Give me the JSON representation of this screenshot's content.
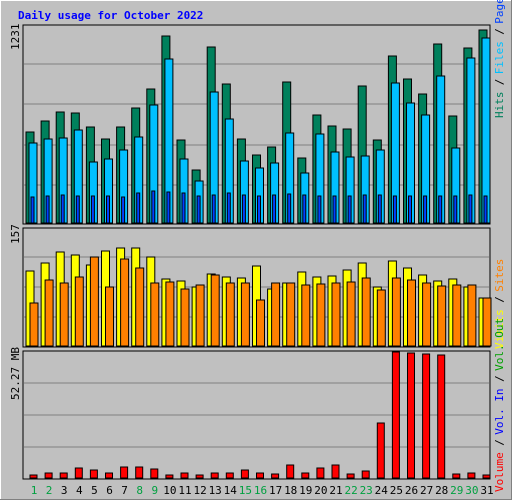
{
  "chart_data": [
    {
      "type": "bar",
      "title": "Daily usage for October 2022",
      "categories": [
        "1",
        "2",
        "3",
        "4",
        "5",
        "6",
        "7",
        "8",
        "9",
        "10",
        "11",
        "12",
        "13",
        "14",
        "15",
        "16",
        "17",
        "18",
        "19",
        "20",
        "21",
        "22",
        "23",
        "24",
        "25",
        "26",
        "27",
        "28",
        "29",
        "30",
        "31"
      ],
      "weekend_days": [
        "1",
        "2",
        "8",
        "9",
        "15",
        "16",
        "22",
        "23",
        "29",
        "30"
      ],
      "y_max_label": "1231",
      "ylim": [
        0,
        1231
      ],
      "grid": true,
      "series": [
        {
          "name": "Hits",
          "color": "#00805c",
          "values": [
            571,
            637,
            694,
            685,
            601,
            523,
            598,
            721,
            837,
            1167,
            519,
            332,
            1098,
            867,
            528,
            426,
            477,
            879,
            409,
            677,
            604,
            589,
            855,
            519,
            1044,
            901,
            806,
            1117,
            666,
            1095,
            1203
          ]
        },
        {
          "name": "Files",
          "color": "#00c0ff",
          "values": [
            503,
            527,
            533,
            580,
            384,
            400,
            456,
            535,
            737,
            1023,
            400,
            261,
            816,
            647,
            387,
            343,
            376,
            560,
            315,
            556,
            442,
            412,
            419,
            454,
            873,
            747,
            676,
            918,
            470,
            1034,
            1153
          ]
        },
        {
          "name": "Pages",
          "color": "#0040ff",
          "values": [
            162,
            167,
            176,
            167,
            167,
            168,
            165,
            186,
            202,
            195,
            185,
            170,
            177,
            189,
            174,
            171,
            176,
            182,
            172,
            166,
            171,
            169,
            175,
            176,
            170,
            171,
            166,
            168,
            169,
            172,
            167
          ]
        }
      ],
      "legend_labels": [
        {
          "text": "Hits",
          "color": "#00805c"
        },
        {
          "text": "Files",
          "color": "#00c0ff"
        },
        {
          "text": "Pages",
          "color": "#0040ff"
        }
      ]
    },
    {
      "type": "bar",
      "y_max_label": "157",
      "ylim": [
        0,
        157
      ],
      "grid": true,
      "series": [
        {
          "name": "Visits",
          "color": "#ffff00",
          "values": [
            100,
            111,
            126,
            122,
            109,
            127,
            131,
            131,
            120,
            90,
            87,
            79,
            97,
            93,
            91,
            107,
            77,
            85,
            99,
            92,
            94,
            102,
            112,
            79,
            114,
            105,
            95,
            87,
            90,
            79,
            65
          ]
        },
        {
          "name": "Sites",
          "color": "#ff8000",
          "values": [
            58,
            89,
            85,
            93,
            120,
            79,
            117,
            105,
            84,
            86,
            77,
            82,
            95,
            84,
            85,
            62,
            85,
            85,
            82,
            83,
            85,
            86,
            91,
            75,
            91,
            89,
            84,
            81,
            82,
            82,
            65
          ]
        }
      ],
      "legend_labels": [
        {
          "text": "Visits",
          "color": "#ffff00"
        },
        {
          "text": "Sites",
          "color": "#ff8000"
        }
      ]
    },
    {
      "type": "bar",
      "y_max_label": "52.27 MB",
      "ylim": [
        0,
        52.27
      ],
      "grid": true,
      "series": [
        {
          "name": "Volume",
          "color": "#ff0000",
          "values": [
            1.2,
            2.1,
            2.0,
            4.1,
            3.5,
            2.0,
            4.6,
            4.5,
            3.8,
            1.4,
            2.2,
            1.3,
            2.0,
            2.2,
            3.5,
            1.9,
            1.8,
            5.5,
            1.9,
            4.2,
            5.4,
            1.7,
            3.1,
            23.0,
            52.3,
            51.7,
            51.5,
            50.9,
            1.7,
            2.2,
            1.3
          ]
        }
      ],
      "legend_labels": [
        {
          "text": "Volume",
          "color": "#ff0000"
        },
        {
          "text": "Vol. In",
          "color": "#0000ff"
        },
        {
          "text": "Vol. Out",
          "color": "#00a000"
        }
      ]
    }
  ]
}
